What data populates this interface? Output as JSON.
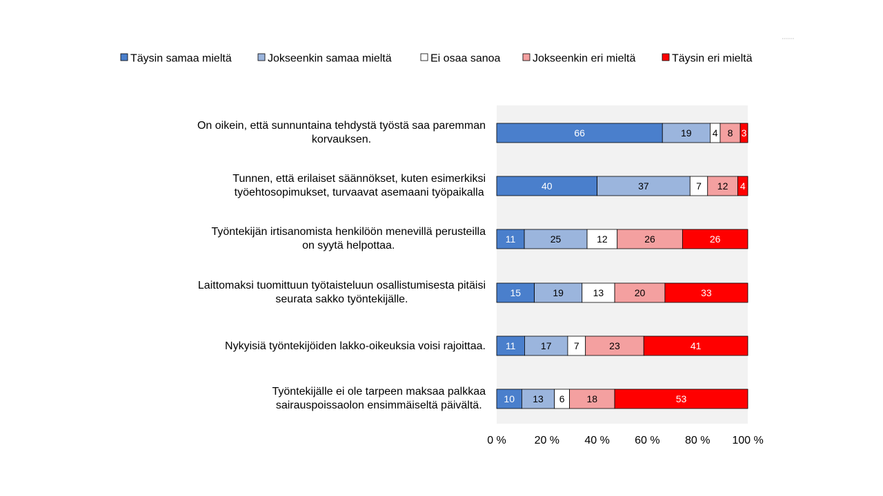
{
  "chart_data": {
    "type": "bar",
    "orientation": "horizontal",
    "stacked": "percent",
    "categories": [
      [
        "On oikein, että sunnuntaina tehdystä työstä saa paremman",
        "korvauksen."
      ],
      [
        "Tunnen, että erilaiset säännökset, kuten esimerkiksi",
        "työehtosopimukset, turvaavat asemaani työpaikalla"
      ],
      [
        "Työntekijän irtisanomista henkilöön menevillä perusteilla",
        "on syytä helpottaa."
      ],
      [
        "Laittomaksi tuomittuun työtaisteluun osallistumisesta pitäisi",
        "seurata sakko työntekijälle."
      ],
      [
        "Nykyisiä työntekijöiden lakko-oikeuksia voisi rajoittaa."
      ],
      [
        "Työntekijälle ei ole tarpeen maksaa palkkaa",
        "sairauspoissaolon ensimmäiseltä päivältä."
      ]
    ],
    "series": [
      {
        "name": "Täysin samaa mieltä",
        "color": "#4a7fcc",
        "label_color": "#ffffff",
        "values": [
          66,
          40,
          11,
          15,
          11,
          10
        ]
      },
      {
        "name": "Jokseenkin samaa mieltä",
        "color": "#9bb5dd",
        "label_color": "#000000",
        "values": [
          19,
          37,
          25,
          19,
          17,
          13
        ]
      },
      {
        "name": "Ei osaa sanoa",
        "color": "#ffffff",
        "label_color": "#000000",
        "values": [
          4,
          7,
          12,
          13,
          7,
          6
        ]
      },
      {
        "name": "Jokseenkin eri mieltä",
        "color": "#f4a0a0",
        "label_color": "#000000",
        "values": [
          8,
          12,
          26,
          20,
          23,
          18
        ]
      },
      {
        "name": "Täysin eri mieltä",
        "color": "#ff0000",
        "label_color": "#ffffff",
        "values": [
          3,
          4,
          26,
          33,
          41,
          53
        ]
      }
    ],
    "x_ticks": [
      "0 %",
      "20 %",
      "40 %",
      "60 %",
      "80 %",
      "100 %"
    ],
    "xlim": [
      0,
      100
    ],
    "legend_position": "top",
    "plot_background": "#f2f2f2",
    "grid": false
  }
}
